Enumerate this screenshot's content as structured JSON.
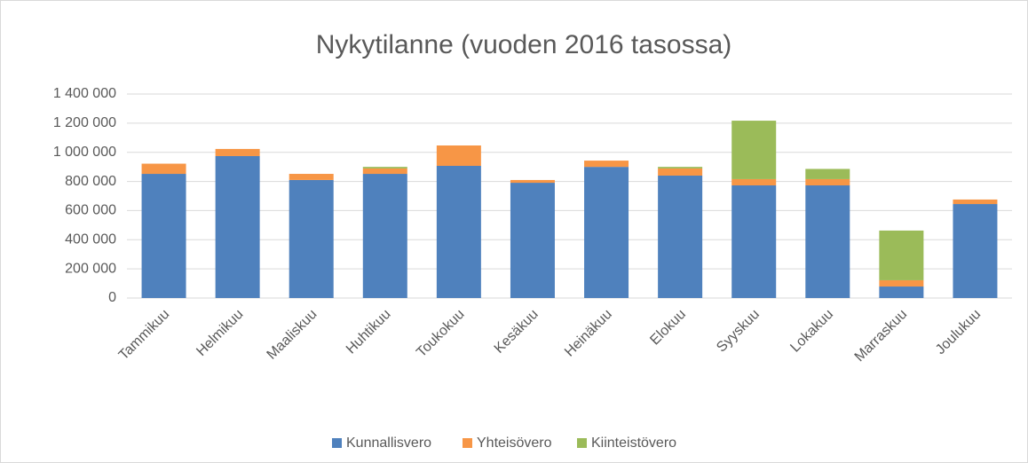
{
  "chart_data": {
    "type": "stacked_bar",
    "title": "Nykytilanne (vuoden 2016 tasossa)",
    "categories": [
      "Tammikuu",
      "Helmikuu",
      "Maaliskuu",
      "Huhtikuu",
      "Toukokuu",
      "Kesäkuu",
      "Heinäkuu",
      "Elokuu",
      "Syyskuu",
      "Lokakuu",
      "Marraskuu",
      "Joulukuu"
    ],
    "series": [
      {
        "name": "Kunnallisvero",
        "color": "#4f81bd",
        "values": [
          852000,
          974000,
          810000,
          852000,
          907000,
          791000,
          900000,
          840000,
          773000,
          773000,
          79000,
          645000
        ]
      },
      {
        "name": "Yhteisövero",
        "color": "#f79646",
        "values": [
          70000,
          49000,
          42000,
          37000,
          140000,
          19000,
          43000,
          49000,
          43000,
          43000,
          43000,
          31000
        ]
      },
      {
        "name": "Kiinteistövero",
        "color": "#9bbb59",
        "values": [
          0,
          0,
          0,
          11000,
          0,
          0,
          0,
          11000,
          401000,
          70000,
          341000,
          0
        ]
      }
    ],
    "ylim": [
      0,
      1400000
    ],
    "yticks": [
      0,
      {
        "value": 200000,
        "label": "200 000"
      },
      {
        "value": 400000,
        "label": "400 000"
      },
      {
        "value": 600000,
        "label": "600 000"
      },
      {
        "value": 800000,
        "label": "800 000"
      },
      {
        "value": 1000000,
        "label": "1 000 000"
      },
      {
        "value": 1200000,
        "label": "1 200 000"
      },
      {
        "value": 1400000,
        "label": "1 400 000"
      }
    ],
    "grid": true,
    "legend": "bottom"
  }
}
